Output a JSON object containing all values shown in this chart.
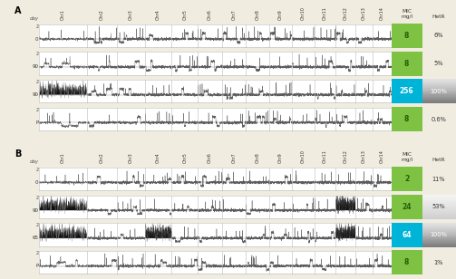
{
  "panel_A": {
    "label": "A",
    "rows": [
      {
        "day": "0",
        "mic": "8",
        "hetr": "6%",
        "mic_color": "#7dc242",
        "hetr_gradient": false,
        "hetr_gray": 0.0,
        "dark_chrs": []
      },
      {
        "day": "90",
        "mic": "8",
        "hetr": "5%",
        "mic_color": "#7dc242",
        "hetr_gradient": false,
        "hetr_gray": 0.0,
        "dark_chrs": []
      },
      {
        "day": "90",
        "mic": "256",
        "hetr": "100%",
        "mic_color": "#00b4d8",
        "hetr_gradient": true,
        "hetr_gray": 0.6,
        "dark_chrs": [
          0
        ]
      },
      {
        "day": "P",
        "mic": "8",
        "hetr": "0.6%",
        "mic_color": "#7dc242",
        "hetr_gradient": false,
        "hetr_gray": 0.0,
        "dark_chrs": []
      }
    ]
  },
  "panel_B": {
    "label": "B",
    "rows": [
      {
        "day": "0",
        "mic": "2",
        "hetr": "11%",
        "mic_color": "#7dc242",
        "hetr_gradient": false,
        "hetr_gray": 0.0,
        "dark_chrs": []
      },
      {
        "day": "90",
        "mic": "24",
        "hetr": "53%",
        "mic_color": "#7dc242",
        "hetr_gradient": true,
        "hetr_gray": 0.3,
        "dark_chrs": [
          0,
          11
        ]
      },
      {
        "day": "65",
        "mic": "64",
        "hetr": "100%",
        "mic_color": "#00b4d8",
        "hetr_gradient": true,
        "hetr_gray": 0.6,
        "dark_chrs": [
          0,
          3,
          11
        ]
      },
      {
        "day": "P",
        "mic": "8",
        "hetr": "1%",
        "mic_color": "#7dc242",
        "hetr_gradient": false,
        "hetr_gray": 0.0,
        "dark_chrs": []
      }
    ]
  },
  "chr_names": [
    "Chr1",
    "Chr2",
    "Chr3",
    "Chr4",
    "Chr5",
    "Chr6",
    "Chr7",
    "Chr8",
    "Chr9",
    "Chr10",
    "Chr11",
    "Chr12",
    "Chr13",
    "Chr14"
  ],
  "chr_widths": [
    1.8,
    1.15,
    1.05,
    1.0,
    1.0,
    0.9,
    0.9,
    0.9,
    0.85,
    0.85,
    0.8,
    0.75,
    0.65,
    0.7
  ],
  "bg_color": "#f0ede0",
  "mic_text_green": "#2a5a0a",
  "mic_text_blue": "#ffffff",
  "hetr_text_light": "#333333",
  "hetr_text_dark": "#ffffff"
}
